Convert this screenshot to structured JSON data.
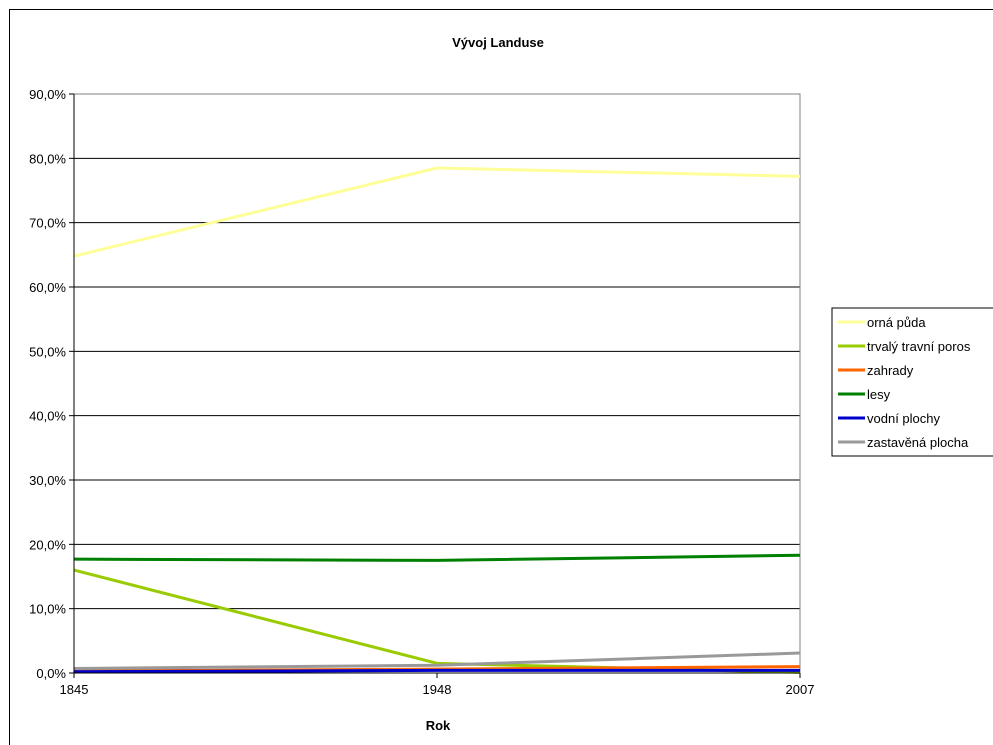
{
  "chart_data": {
    "type": "line",
    "title": "Vývoj Landuse",
    "xlabel": "Rok",
    "ylabel": "",
    "categories": [
      "1845",
      "1948",
      "2007"
    ],
    "ylim": [
      0,
      90
    ],
    "y_tick_values": [
      0,
      10,
      20,
      30,
      40,
      50,
      60,
      70,
      80,
      90
    ],
    "y_tick_labels": [
      "0,0%",
      "10,0%",
      "20,0%",
      "30,0%",
      "40,0%",
      "50,0%",
      "60,0%",
      "70,0%",
      "80,0%",
      "90,0%"
    ],
    "grid": true,
    "legend_position": "right",
    "series": [
      {
        "name": "orná půda",
        "color": "#ffff99",
        "values": [
          64.8,
          78.5,
          77.2
        ]
      },
      {
        "name": "trvalý travní poros",
        "color": "#99cc00",
        "values": [
          16.0,
          1.5,
          0.1
        ]
      },
      {
        "name": "zahrady",
        "color": "#ff6600",
        "values": [
          0.3,
          0.6,
          1.0
        ]
      },
      {
        "name": "lesy",
        "color": "#008000",
        "values": [
          17.7,
          17.5,
          18.3
        ]
      },
      {
        "name": "vodní plochy",
        "color": "#0000cc",
        "values": [
          0.2,
          0.4,
          0.4
        ]
      },
      {
        "name": "zastavěná plocha",
        "color": "#999999",
        "values": [
          0.7,
          1.2,
          3.1
        ]
      }
    ]
  }
}
